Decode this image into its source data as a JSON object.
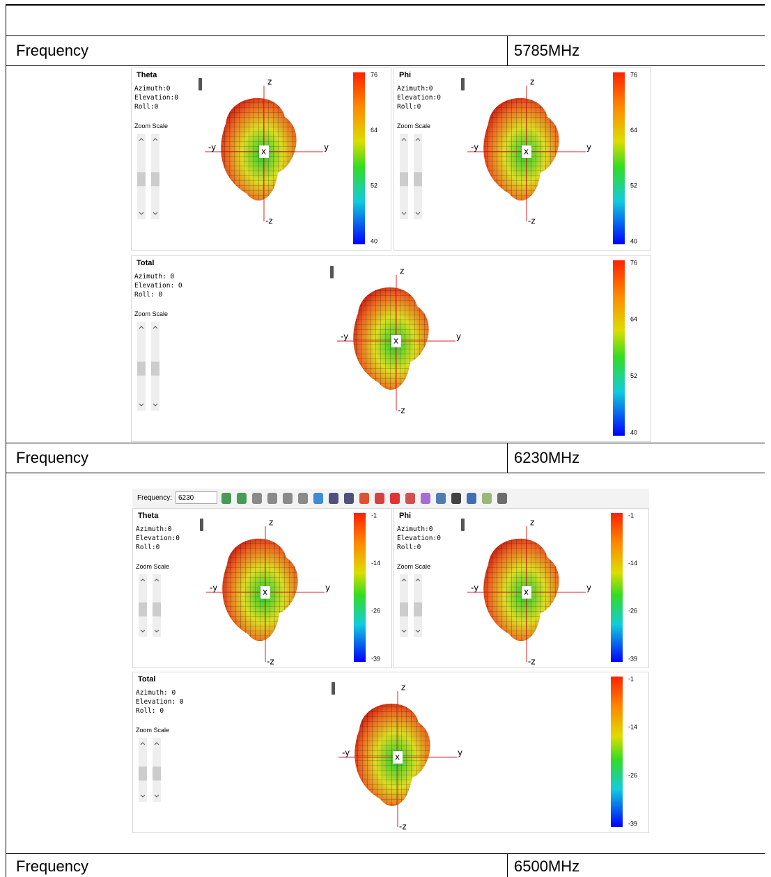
{
  "table": {
    "rows": [
      [
        "Frequency",
        "5785MHz"
      ],
      [
        "Frequency",
        "6230MHz"
      ],
      [
        "Frequency",
        "6500MHz"
      ]
    ]
  },
  "figures": [
    {
      "panels": [
        {
          "title": "Theta",
          "orientation": [
            "Azimuth:0",
            "Elevation:0",
            "Roll:0"
          ],
          "zoom_label": "Zoom Scale",
          "axes": [
            "z",
            "-y",
            "y",
            "x",
            "-z"
          ],
          "colorbar_ticks": [
            76,
            64,
            52,
            40
          ]
        },
        {
          "title": "Phi",
          "orientation": [
            "Azimuth:0",
            "Elevation:0",
            "Roll:0"
          ],
          "zoom_label": "Zoom Scale",
          "axes": [
            "z",
            "-y",
            "y",
            "x",
            "-z"
          ],
          "colorbar_ticks": [
            76,
            64,
            52,
            40
          ]
        },
        {
          "title": "Total",
          "orientation": [
            "Azimuth: 0",
            "Elevation: 0",
            "Roll: 0"
          ],
          "zoom_label": "Zoom Scale",
          "axes": [
            "z",
            "-y",
            "y",
            "x",
            "-z"
          ],
          "colorbar_ticks": [
            76,
            64,
            52,
            40
          ]
        }
      ]
    },
    {
      "toolbar": {
        "label": "Frequency:",
        "value": "6230"
      },
      "panels": [
        {
          "title": "Theta",
          "orientation": [
            "Azimuth:0",
            "Elevation:0",
            "Roll:0"
          ],
          "zoom_label": "Zoom Scale",
          "axes": [
            "z",
            "-y",
            "y",
            "x",
            "-z"
          ],
          "colorbar_ticks": [
            -1,
            -14,
            -26,
            -39
          ]
        },
        {
          "title": "Phi",
          "orientation": [
            "Azimuth:0",
            "Elevation:0",
            "Roll:0"
          ],
          "zoom_label": "Zoom Scale",
          "axes": [
            "z",
            "-y",
            "y",
            "x",
            "-z"
          ],
          "colorbar_ticks": [
            -1,
            -14,
            -26,
            -39
          ]
        },
        {
          "title": "Total",
          "orientation": [
            "Azimuth: 0",
            "Elevation: 0",
            "Roll: 0"
          ],
          "zoom_label": "Zoom Scale",
          "axes": [
            "z",
            "-y",
            "y",
            "x",
            "-z"
          ],
          "colorbar_ticks": [
            -1,
            -14,
            -26,
            -39
          ]
        }
      ]
    }
  ]
}
